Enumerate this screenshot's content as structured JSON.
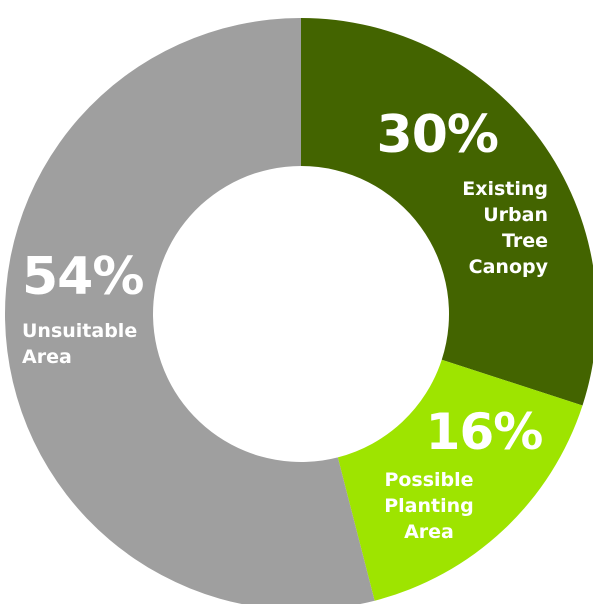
{
  "chart_data": {
    "type": "pie",
    "donut": true,
    "title": "",
    "start": "top",
    "direction": "clockwise",
    "slices": [
      {
        "name": "Existing Urban Tree Canopy",
        "label_lines": [
          "Existing",
          "Urban",
          "Tree",
          "Canopy"
        ],
        "value": 30,
        "value_label": "30%",
        "color": "#436400",
        "label_align": "end"
      },
      {
        "name": "Possible Planting Area",
        "label_lines": [
          "Possible",
          "Planting",
          "Area"
        ],
        "value": 16,
        "value_label": "16%",
        "color": "#9ee400",
        "label_align": "middle"
      },
      {
        "name": "Unsuitable Area",
        "label_lines": [
          "Unsuitable",
          "Area"
        ],
        "value": 54,
        "value_label": "54%",
        "color": "#9f9f9f",
        "label_align": "start"
      }
    ]
  }
}
